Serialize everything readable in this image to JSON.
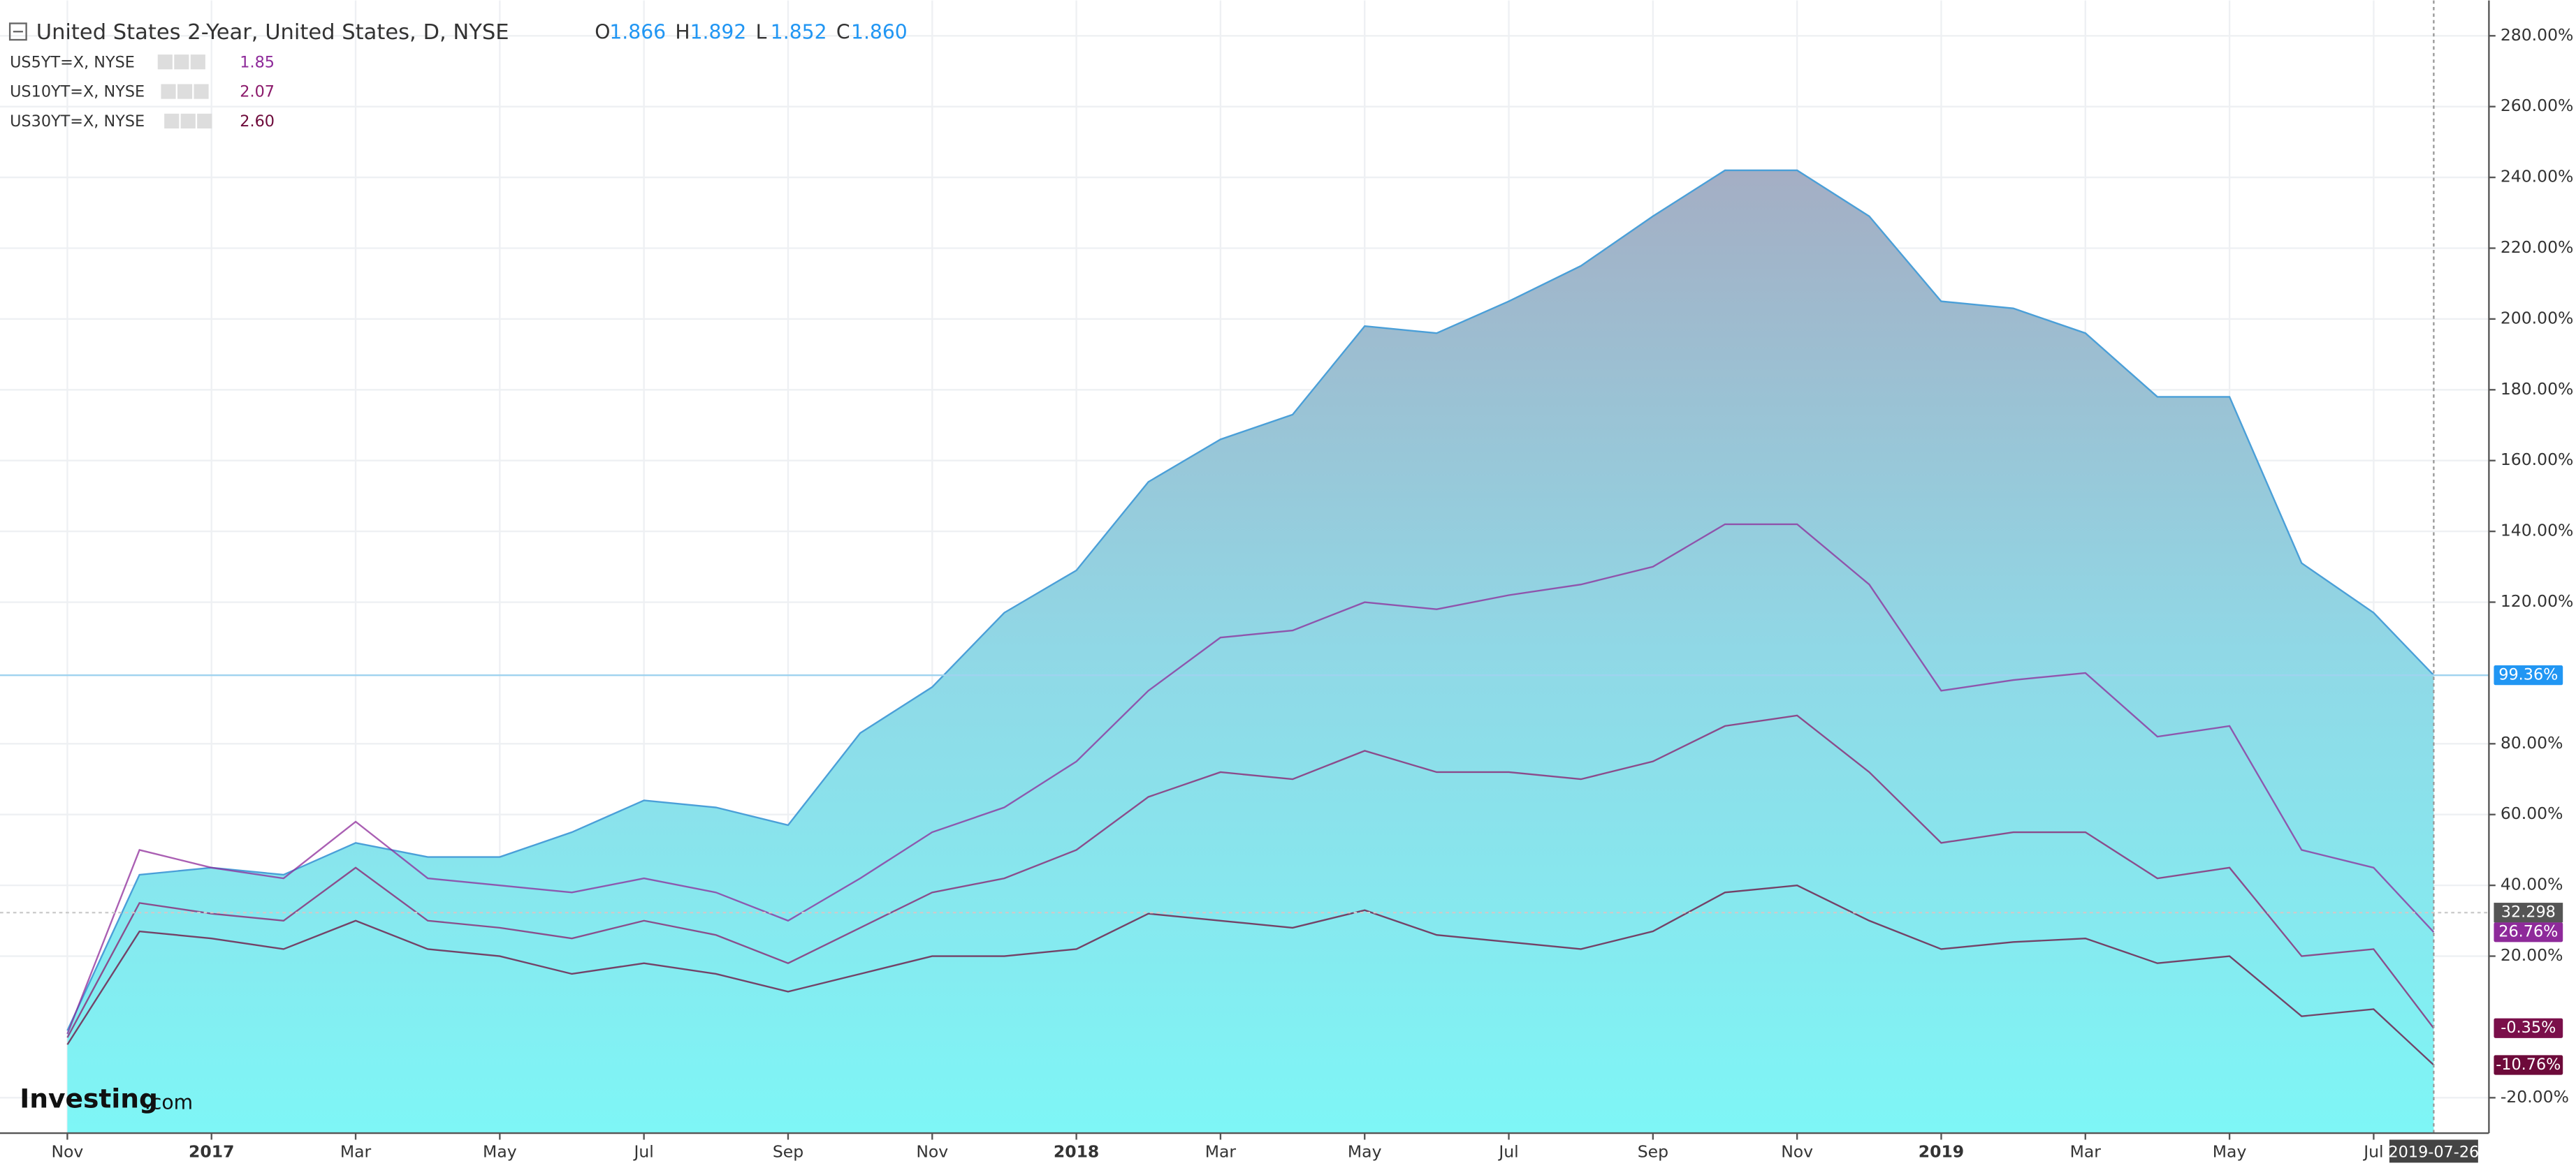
{
  "chart_data": {
    "type": "area-line",
    "title": "United States 2-Year, United States, D, NYSE",
    "ohlc": [
      {
        "key": "O",
        "value": "1.866"
      },
      {
        "key": "H",
        "value": "1.892"
      },
      {
        "key": "L",
        "value": "1.852"
      },
      {
        "key": "C",
        "value": "1.860"
      }
    ],
    "brand": [
      "Investing",
      ".com"
    ],
    "x": [
      "2016-11",
      "2016-12",
      "2017-01",
      "2017-02",
      "2017-03",
      "2017-04",
      "2017-05",
      "2017-06",
      "2017-07",
      "2017-08",
      "2017-09",
      "2017-10",
      "2017-11",
      "2017-12",
      "2018-01",
      "2018-02",
      "2018-03",
      "2018-04",
      "2018-05",
      "2018-06",
      "2018-07",
      "2018-08",
      "2018-09",
      "2018-10",
      "2018-11",
      "2018-12",
      "2019-01",
      "2019-02",
      "2019-03",
      "2019-04",
      "2019-05",
      "2019-06",
      "2019-07",
      "2019-07-26"
    ],
    "series": [
      {
        "name": "United States 2-Year",
        "color": "#4a9fd8",
        "fill": true,
        "values": [
          -1,
          43,
          45,
          43,
          52,
          48,
          48,
          55,
          64,
          62,
          57,
          83,
          96,
          117,
          129,
          154,
          166,
          173,
          198,
          196,
          205,
          215,
          229,
          242,
          242,
          229,
          205,
          203,
          196,
          178,
          178,
          131,
          117,
          99.36
        ],
        "last_label": "99.36%",
        "tag_color": "#2196f3"
      },
      {
        "name": "US5YT=X, NYSE",
        "color": "#8e2a9a",
        "legend_value": "1.85",
        "values": [
          -2,
          50,
          45,
          42,
          58,
          42,
          40,
          38,
          42,
          38,
          30,
          42,
          55,
          62,
          75,
          95,
          110,
          112,
          120,
          118,
          122,
          125,
          130,
          142,
          142,
          125,
          95,
          98,
          100,
          82,
          85,
          50,
          45,
          26.76
        ],
        "last_label": "26.76%",
        "tag_color": "#8e2a9a"
      },
      {
        "name": "US10YT=X, NYSE",
        "color": "#8b1a6b",
        "legend_value": "2.07",
        "values": [
          -3,
          35,
          32,
          30,
          45,
          30,
          28,
          25,
          30,
          26,
          18,
          28,
          38,
          42,
          50,
          65,
          72,
          70,
          78,
          72,
          72,
          70,
          75,
          85,
          88,
          72,
          52,
          55,
          55,
          42,
          45,
          20,
          22,
          -0.35
        ],
        "last_label": "-0.35%",
        "tag_color": "#7a0f4a"
      },
      {
        "name": "US30YT=X, NYSE",
        "color": "#6d0a3a",
        "legend_value": "2.60",
        "values": [
          -5,
          27,
          25,
          22,
          30,
          22,
          20,
          15,
          18,
          15,
          10,
          15,
          20,
          20,
          22,
          32,
          30,
          28,
          33,
          26,
          24,
          22,
          27,
          38,
          40,
          30,
          22,
          24,
          25,
          18,
          20,
          3,
          5,
          -10.76
        ],
        "last_label": "-10.76%",
        "tag_color": "#6d0a3a"
      }
    ],
    "crosshair": {
      "x": "2019-07-26",
      "y": 32.298
    },
    "ylim": [
      -30,
      290
    ],
    "yticks": [
      {
        "value": -20,
        "label": "-20.00%"
      },
      {
        "value": 20,
        "label": "20.00%"
      },
      {
        "value": 40,
        "label": "40.00%"
      },
      {
        "value": 60,
        "label": "60.00%"
      },
      {
        "value": 80,
        "label": "80.00%"
      },
      {
        "value": 120,
        "label": "120.00%"
      },
      {
        "value": 140,
        "label": "140.00%"
      },
      {
        "value": 160,
        "label": "160.00%"
      },
      {
        "value": 180,
        "label": "180.00%"
      },
      {
        "value": 200,
        "label": "200.00%"
      },
      {
        "value": 220,
        "label": "220.00%"
      },
      {
        "value": 240,
        "label": "240.00%"
      },
      {
        "value": 260,
        "label": "260.00%"
      },
      {
        "value": 280,
        "label": "280.00%"
      }
    ],
    "xticks": [
      {
        "value": "2016-11",
        "label": "Nov"
      },
      {
        "value": "2017-01",
        "label": "2017"
      },
      {
        "value": "2017-03",
        "label": "Mar"
      },
      {
        "value": "2017-05",
        "label": "May"
      },
      {
        "value": "2017-07",
        "label": "Jul"
      },
      {
        "value": "2017-09",
        "label": "Sep"
      },
      {
        "value": "2017-11",
        "label": "Nov"
      },
      {
        "value": "2018-01",
        "label": "2018"
      },
      {
        "value": "2018-03",
        "label": "Mar"
      },
      {
        "value": "2018-05",
        "label": "May"
      },
      {
        "value": "2018-07",
        "label": "Jul"
      },
      {
        "value": "2018-09",
        "label": "Sep"
      },
      {
        "value": "2018-11",
        "label": "Nov"
      },
      {
        "value": "2019-01",
        "label": "2019"
      },
      {
        "value": "2019-03",
        "label": "Mar"
      },
      {
        "value": "2019-05",
        "label": "May"
      },
      {
        "value": "2019-07",
        "label": "Jul"
      }
    ],
    "grid": true
  }
}
